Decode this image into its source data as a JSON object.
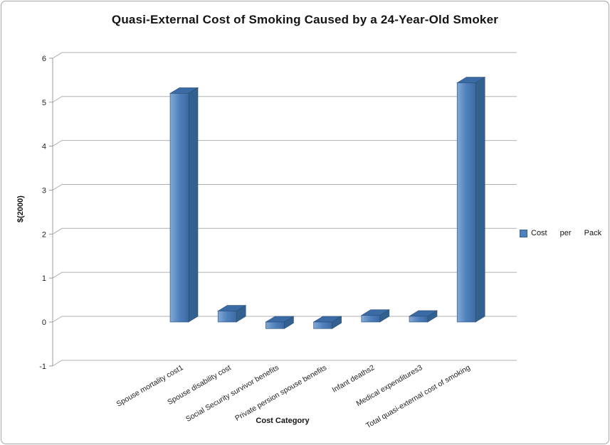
{
  "frame": {
    "background": "#ffffff",
    "border_color": "#a6a6a6"
  },
  "chart_data": {
    "type": "bar",
    "style": "3d-column",
    "title": "Quasi-External Cost of Smoking Caused by a 24-Year-Old Smoker",
    "xlabel": "Cost Category",
    "ylabel": "$(2000)",
    "categories": [
      "Spouse mortality cost1",
      "Spouse disability cost",
      "Social Security survivor benefits",
      "Private persion spouse benefits",
      "Infant deaths2",
      "Medical expenditures3",
      "Total quasi-external cost of smoking"
    ],
    "series": [
      {
        "name": "Cost per Pack",
        "values": [
          5.2,
          0.25,
          -0.15,
          -0.15,
          0.15,
          0.13,
          5.44
        ]
      }
    ],
    "ylim": [
      -1,
      6
    ],
    "yticks": [
      6,
      5,
      4,
      3,
      2,
      1,
      0,
      -1
    ],
    "grid": true,
    "legend_position": "right",
    "colors": {
      "bar_front": "#4f81bd",
      "bar_front_light": "#82a9d4",
      "bar_front_dark": "#3e69a2",
      "bar_side": "#33618f",
      "bar_top": "#3a6ba5",
      "bar_outline": "#2a4d77",
      "grid": "#b0b0b0",
      "axis": "#9b9b9b",
      "text": "#1f1f1f"
    }
  }
}
